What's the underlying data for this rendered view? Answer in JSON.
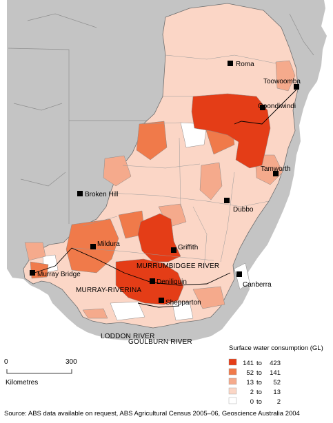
{
  "map": {
    "cities": [
      {
        "name": "Roma"
      },
      {
        "name": "Toowoomba"
      },
      {
        "name": "Goondiwindi"
      },
      {
        "name": "Tamworth"
      },
      {
        "name": "Broken Hill"
      },
      {
        "name": "Dubbo"
      },
      {
        "name": "Mildura"
      },
      {
        "name": "Griffith"
      },
      {
        "name": "Murray Bridge"
      },
      {
        "name": "Deniliquin"
      },
      {
        "name": "Canberra"
      },
      {
        "name": "Shepparton"
      }
    ],
    "regions": [
      {
        "name": "MURRUMBIDGEE RIVER"
      },
      {
        "name": "MURRAY-RIVERINA"
      },
      {
        "name": "LODDON RIVER"
      },
      {
        "name": "GOULBURN RIVER"
      }
    ]
  },
  "legend": {
    "title": "Surface water consumption (GL)",
    "classes": [
      {
        "low": 141,
        "high": 423,
        "label_low": "141",
        "label_to": "to",
        "label_high": "423",
        "color": "#e43d17"
      },
      {
        "low": 52,
        "high": 141,
        "label_low": "52",
        "label_to": "to",
        "label_high": "141",
        "color": "#f07a4a"
      },
      {
        "low": 13,
        "high": 52,
        "label_low": "13",
        "label_to": "to",
        "label_high": "52",
        "color": "#f5aa8c"
      },
      {
        "low": 2,
        "high": 13,
        "label_low": "2",
        "label_to": "to",
        "label_high": "13",
        "color": "#fbd6c6"
      },
      {
        "low": 0,
        "high": 2,
        "label_low": "0",
        "label_to": "to",
        "label_high": "2",
        "color": "#ffffff"
      }
    ]
  },
  "scale": {
    "start": "0",
    "end": "300",
    "unit": "Kilometres"
  },
  "source": "Source: ABS data available on request, ABS Agricultural Census 2005–06, Geoscience Australia 2004",
  "colors": {
    "land_outside": "#c4c4c4",
    "sea": "#ffffff",
    "boundary": "#6e6e6e"
  }
}
